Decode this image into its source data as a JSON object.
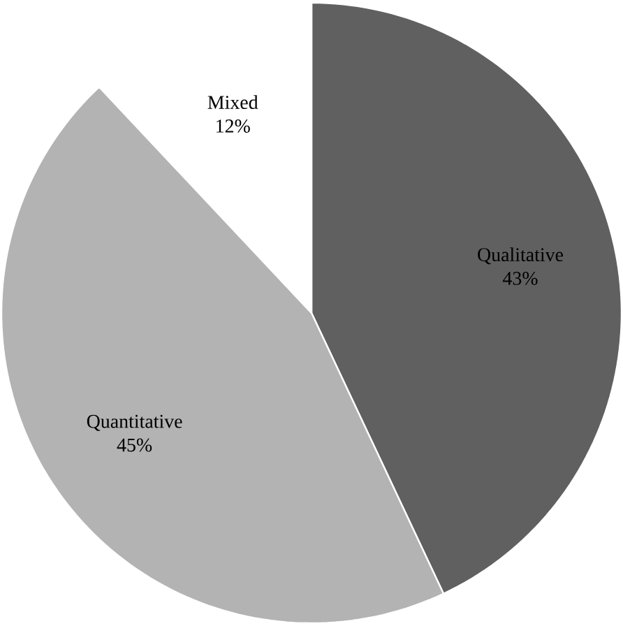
{
  "chart_data": {
    "type": "pie",
    "categories": [
      "Qualitative",
      "Quantitative",
      "Mixed"
    ],
    "values": [
      43,
      45,
      12
    ],
    "colors": [
      "#606060",
      "#b3b3b3",
      "#ffffff"
    ],
    "value_labels": [
      "43%",
      "45%",
      "12%"
    ]
  }
}
